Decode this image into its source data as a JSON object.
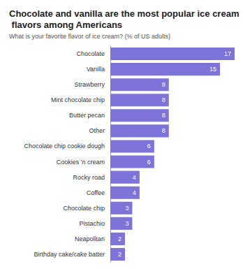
{
  "chart_data": {
    "type": "bar",
    "title": "Chocolate and vanilla are the most popular ice cream flavors among Americans",
    "subtitle": "What is your favorite flavor of ice cream? (% of US adults)",
    "orientation": "horizontal",
    "categories": [
      "Chocolate",
      "Vanilla",
      "Strawberry",
      "Mint chocolate chip",
      "Butter pecan",
      "Other",
      "Chocolate chip cookie dough",
      "Cookies 'n cream",
      "Rocky road",
      "Coffee",
      "Chocolate chip",
      "Pistachio",
      "Neapolitan",
      "Birthday cake/cake batter"
    ],
    "values": [
      17,
      15,
      8,
      8,
      8,
      8,
      6,
      6,
      4,
      4,
      3,
      3,
      2,
      2
    ],
    "color": "#7d73d9",
    "xlim": [
      0,
      17
    ],
    "grid": false,
    "data_labels": true,
    "tick_labels": "y"
  }
}
